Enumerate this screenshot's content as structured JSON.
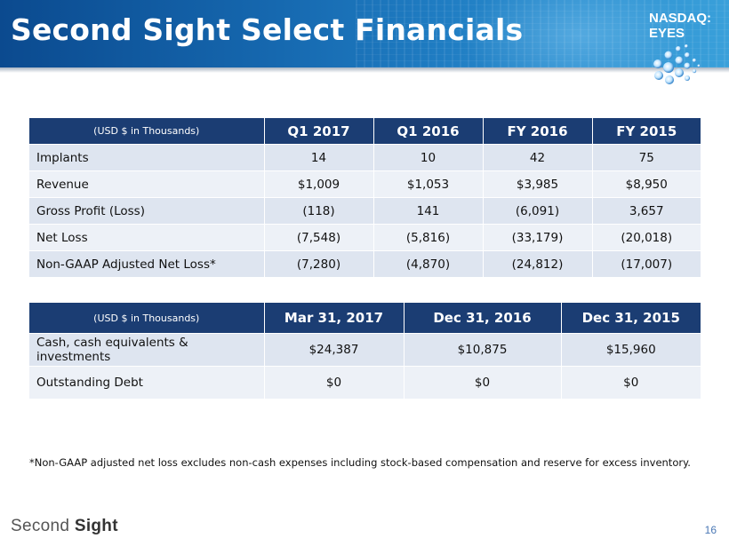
{
  "header": {
    "title": "Second Sight Select Financials",
    "ticker_line1": "NASDAQ:",
    "ticker_line2": "EYES",
    "banner_color": "#1566ad"
  },
  "table1": {
    "unit_header": "(USD $ in Thousands)",
    "columns": [
      "Q1 2017",
      "Q1 2016",
      "FY 2016",
      "FY 2015"
    ],
    "rows": [
      {
        "label": "Implants",
        "values": [
          "14",
          "10",
          "42",
          "75"
        ]
      },
      {
        "label": "Revenue",
        "values": [
          "$1,009",
          "$1,053",
          "$3,985",
          "$8,950"
        ]
      },
      {
        "label": "Gross Profit (Loss)",
        "values": [
          "(118)",
          "141",
          "(6,091)",
          "3,657"
        ]
      },
      {
        "label": "Net Loss",
        "values": [
          "(7,548)",
          "(5,816)",
          "(33,179)",
          "(20,018)"
        ]
      },
      {
        "label": "Non-GAAP Adjusted Net Loss*",
        "values": [
          "(7,280)",
          "(4,870)",
          "(24,812)",
          "(17,007)"
        ]
      }
    ]
  },
  "table2": {
    "unit_header": "(USD $ in Thousands)",
    "columns": [
      "Mar 31, 2017",
      "Dec 31, 2016",
      "Dec 31, 2015"
    ],
    "rows": [
      {
        "label": "Cash, cash equivalents & investments",
        "values": [
          "$24,387",
          "$10,875",
          "$15,960"
        ]
      },
      {
        "label": "Outstanding Debt",
        "values": [
          "$0",
          "$0",
          "$0"
        ]
      }
    ]
  },
  "footnote": "*Non-GAAP adjusted net loss excludes non-cash expenses including stock-based compensation and reserve for excess inventory.",
  "footer": {
    "logo_word1": "Second",
    "logo_word2": "Sight",
    "page_number": "16"
  },
  "colors": {
    "table_header": "#1b3d73",
    "row_odd": "#dee5f0",
    "row_even": "#edf1f7"
  }
}
